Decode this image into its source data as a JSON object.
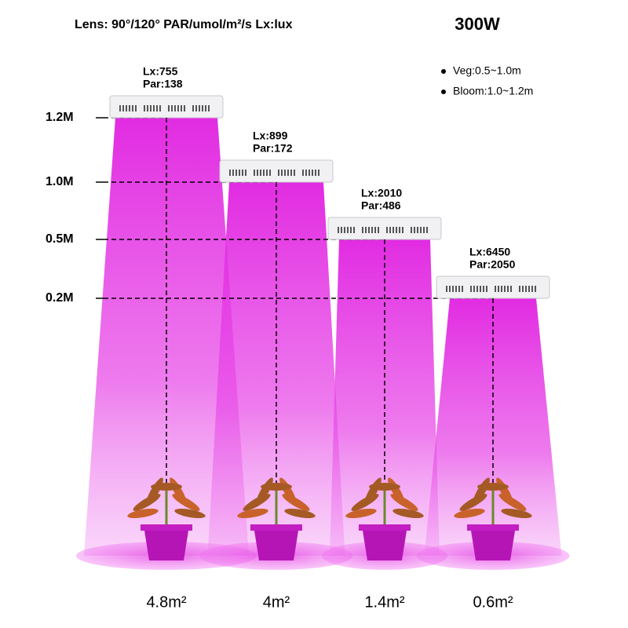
{
  "header": {
    "specs": "Lens: 90°/120°  PAR/umol/m²/s   Lx:lux",
    "power": "300W"
  },
  "legend": [
    "Veg:0.5~1.0m",
    "Bloom:1.0~1.2m"
  ],
  "heights": [
    "1.2M",
    "1.0M",
    "0.5M",
    "0.2M"
  ],
  "lights": [
    {
      "lx": "Lx:755",
      "par": "Par:138",
      "area": "4.8m²"
    },
    {
      "lx": "Lx:899",
      "par": "Par:172",
      "area": "4m²"
    },
    {
      "lx": "Lx:2010",
      "par": "Par:486",
      "area": "1.4m²"
    },
    {
      "lx": "Lx:6450",
      "par": "Par:2050",
      "area": "0.6m²"
    }
  ]
}
